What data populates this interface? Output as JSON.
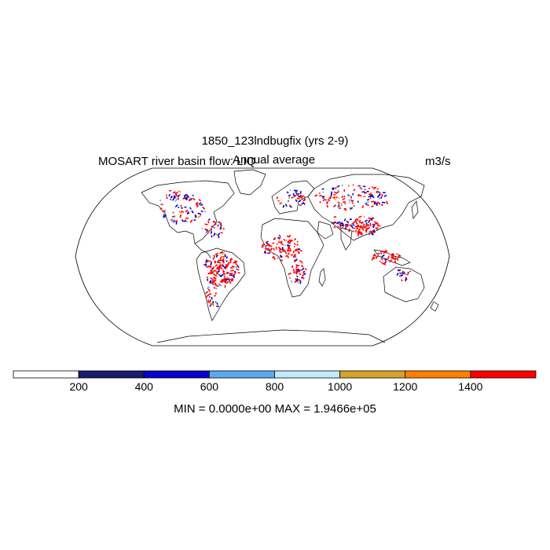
{
  "plot": {
    "title": "1850_123lndbugfix (yrs 2-9)",
    "field": "MOSART river basin flow: LIQ",
    "season": "Annual average",
    "units": "m3/s",
    "minmax": "MIN = 0.0000e+00 MAX = 1.9466e+05"
  },
  "colorbar": {
    "colors": [
      "#ffffff",
      "#1a1a6e",
      "#0a00cd",
      "#5aaaf0",
      "#c0ecfa",
      "#d6a32a",
      "#ff8000",
      "#ff0000"
    ],
    "tick_labels": [
      "200",
      "400",
      "600",
      "800",
      "1000",
      "1200",
      "1400"
    ]
  },
  "map": {
    "projection": "Robinson",
    "point_colors": [
      "#ff0000",
      "#0000cc",
      "#1a1a6e",
      "#ff8000",
      "#5aaaf0"
    ]
  }
}
